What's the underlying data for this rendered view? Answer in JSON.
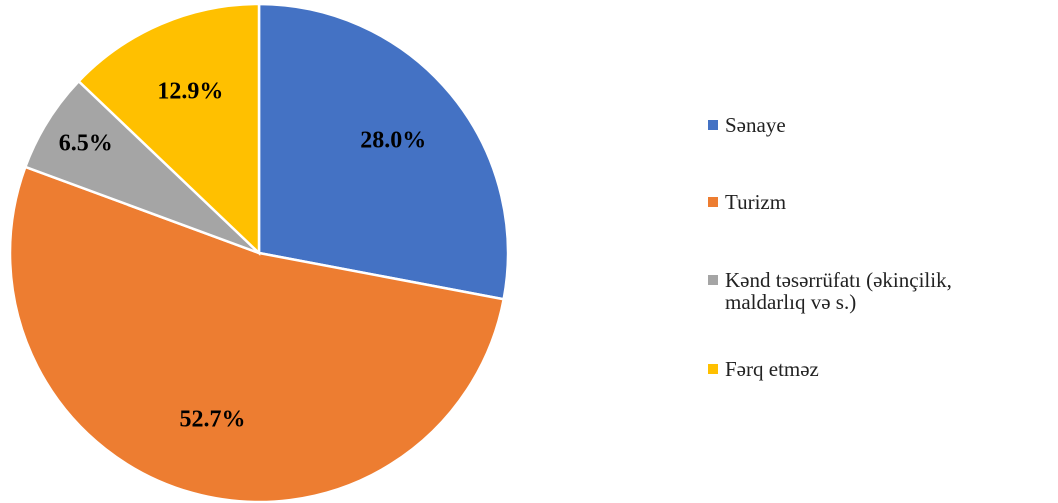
{
  "chart_data": {
    "type": "pie",
    "categories": [
      "Sənaye",
      "Turizm",
      "Kənd təsərrüfatı (əkinçilik, maldarlıq və s.)",
      "Fərq etməz"
    ],
    "values": [
      28.0,
      52.7,
      6.5,
      12.9
    ],
    "value_labels": [
      "28.0%",
      "52.7%",
      "6.5%",
      "12.9%"
    ],
    "colors": [
      "#4472c4",
      "#ed7d31",
      "#a5a5a5",
      "#ffc000"
    ],
    "legend": "right"
  }
}
